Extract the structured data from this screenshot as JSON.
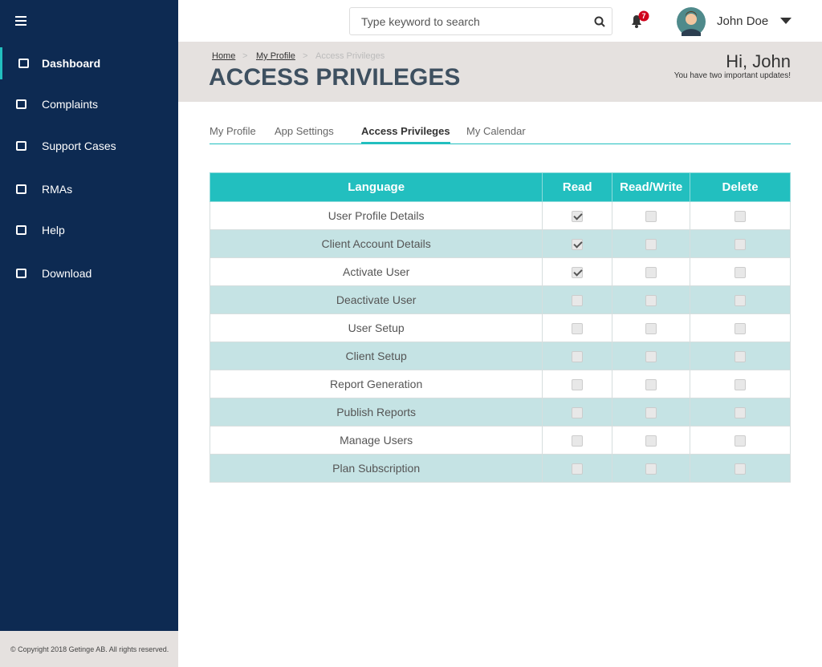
{
  "sidebar": {
    "items": [
      "Dashboard",
      "Complaints",
      "Support Cases",
      "RMAs",
      "Help",
      "Download"
    ],
    "active": 0,
    "copyright": "© Copyright 2018 Getinge AB. All rights reserved."
  },
  "topbar": {
    "search_placeholder": "Type keyword to search",
    "notifications": 7,
    "user_name": "John Doe"
  },
  "banner": {
    "breadcrumbs": [
      "Home",
      "My Profile",
      "Access Privileges"
    ],
    "title": "ACCESS PRIVILEGES",
    "greeting": "Hi, John",
    "updates": "You have two important updates!"
  },
  "tabs": {
    "items": [
      "My Profile",
      "App Settings",
      "Access Privileges",
      "My Calendar"
    ],
    "active": 2
  },
  "table": {
    "headers": [
      "Language",
      "Read",
      "Read/Write",
      "Delete"
    ],
    "rows": [
      {
        "label": "User Profile Details",
        "checked": [
          true,
          false,
          false
        ]
      },
      {
        "label": "Client Account Details",
        "checked": [
          true,
          false,
          false
        ]
      },
      {
        "label": "Activate User",
        "checked": [
          true,
          false,
          false
        ]
      },
      {
        "label": "Deactivate User",
        "checked": [
          false,
          false,
          false
        ]
      },
      {
        "label": "User Setup",
        "checked": [
          false,
          false,
          false
        ]
      },
      {
        "label": "Client Setup",
        "checked": [
          false,
          false,
          false
        ]
      },
      {
        "label": "Report Generation",
        "checked": [
          false,
          false,
          false
        ]
      },
      {
        "label": "Publish Reports",
        "checked": [
          false,
          false,
          false
        ]
      },
      {
        "label": "Manage Users",
        "checked": [
          false,
          false,
          false
        ]
      },
      {
        "label": "Plan Subscription",
        "checked": [
          false,
          false,
          false
        ]
      }
    ]
  }
}
